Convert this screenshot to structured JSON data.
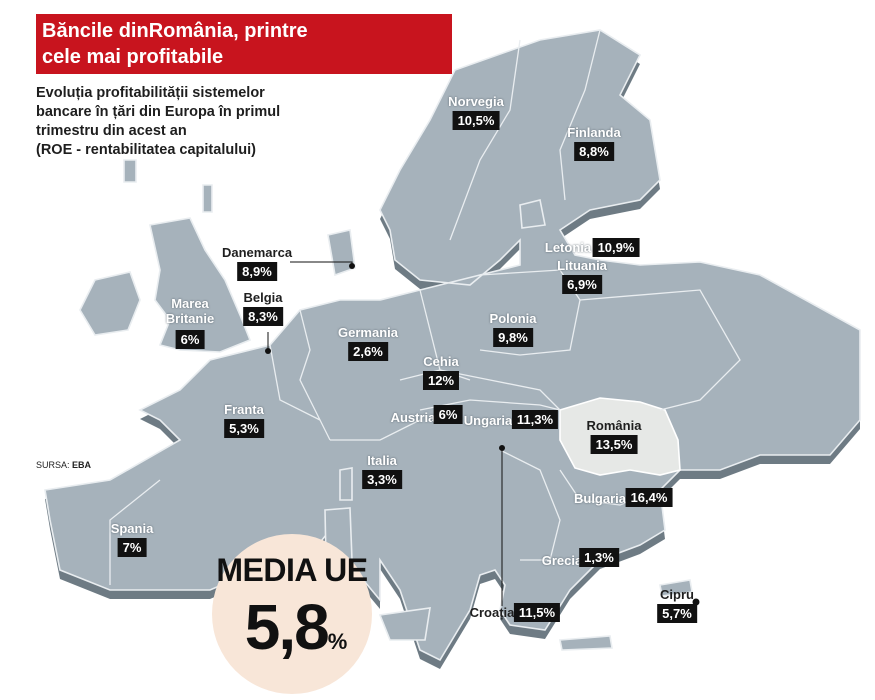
{
  "header": {
    "title": "Băncile dinRomânia, printre cele mai profitabile",
    "subtitle_lines": [
      "Evoluția profitabilității sistemelor",
      "bancare în țări din Europa în primul",
      "trimestru din acest an",
      "(ROE - rentabilitatea capitalului)"
    ]
  },
  "source": {
    "label": "SURSA:",
    "name": "EBA"
  },
  "average": {
    "label": "MEDIA UE",
    "value": "5,8",
    "unit": "%"
  },
  "countries": [
    {
      "name": "Norvegia",
      "roe": "10,5%"
    },
    {
      "name": "Finlanda",
      "roe": "8,8%"
    },
    {
      "name": "Danemarca",
      "roe": "8,9%"
    },
    {
      "name": "Letonia",
      "roe": "10,9%"
    },
    {
      "name": "Lituania",
      "roe": "6,9%"
    },
    {
      "name": "Marea Britanie",
      "roe": "6%"
    },
    {
      "name": "Belgia",
      "roe": "8,3%"
    },
    {
      "name": "Germania",
      "roe": "2,6%"
    },
    {
      "name": "Polonia",
      "roe": "9,8%"
    },
    {
      "name": "Cehia",
      "roe": "12%"
    },
    {
      "name": "Austria",
      "roe": "6%"
    },
    {
      "name": "Ungaria",
      "roe": "11,3%"
    },
    {
      "name": "România",
      "roe": "13,5%"
    },
    {
      "name": "Franta",
      "roe": "5,3%"
    },
    {
      "name": "Italia",
      "roe": "3,3%"
    },
    {
      "name": "Bulgaria",
      "roe": "16,4%"
    },
    {
      "name": "Spania",
      "roe": "7%"
    },
    {
      "name": "Grecia",
      "roe": "1,3%"
    },
    {
      "name": "Croația",
      "roe": "11,5%"
    },
    {
      "name": "Cipru",
      "roe": "5,7%"
    }
  ],
  "colors": {
    "title_bar": "#c8141e",
    "land": "#a6b2bb",
    "highlight_romania": "#e6e8e6",
    "average_circle": "#f8e6d8",
    "value_box": "#111111"
  }
}
